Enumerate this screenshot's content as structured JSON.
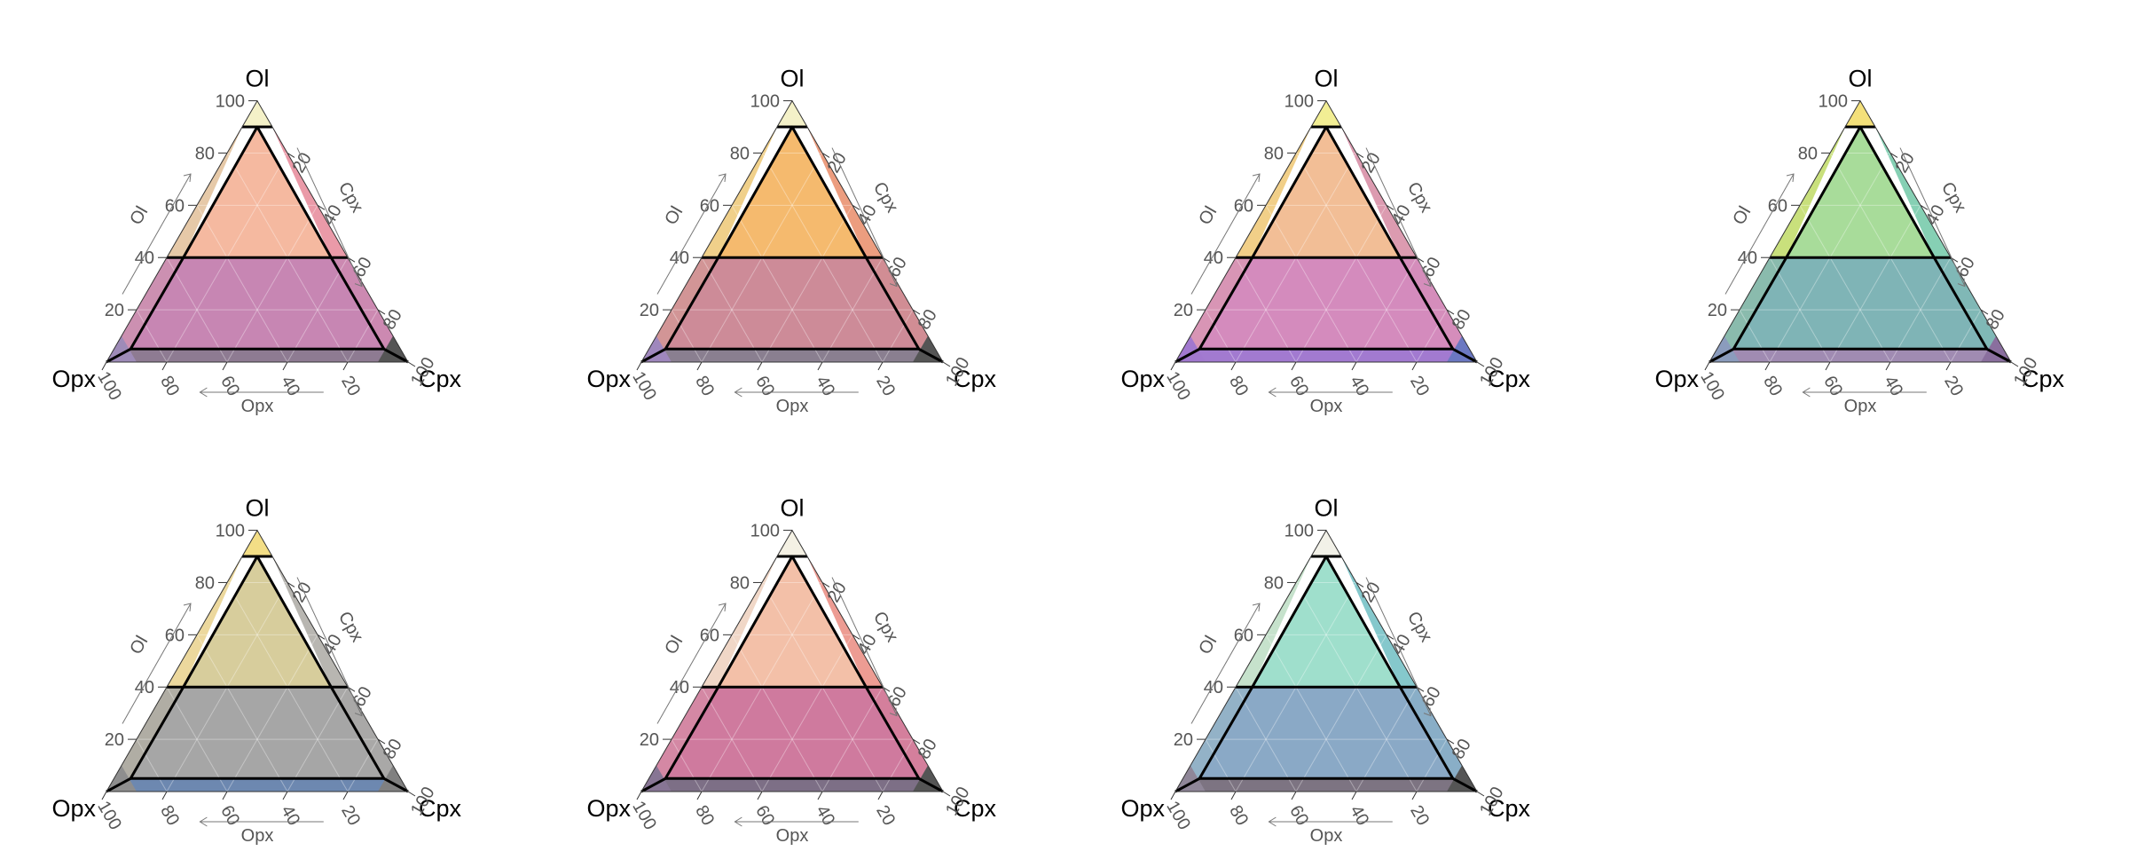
{
  "axes": {
    "top_vertex": "Ol",
    "left_vertex": "Opx",
    "right_vertex": "Cpx",
    "left_axis_title": "Ol",
    "right_axis_title": "Cpx",
    "bottom_axis_title": "Opx",
    "left_ticks": [
      "20",
      "40",
      "60",
      "80",
      "100"
    ],
    "right_ticks": [
      "20",
      "40",
      "60",
      "80",
      "100"
    ],
    "bottom_ticks": [
      "100",
      "80",
      "60",
      "40",
      "20"
    ]
  },
  "diagram_data": {
    "type": "ternary-classification",
    "fields_by_Ol_percent": [
      [
        90,
        100
      ],
      [
        40,
        90
      ],
      [
        5,
        40
      ],
      [
        0,
        5
      ]
    ],
    "corner_cutoff_percent": 90,
    "panels": [
      {
        "colors": {
          "tip": "#f4f1c8",
          "upper": "#f5b9a0",
          "middle": "#c786b3",
          "base": "#8e7b92",
          "left_band": "#e6c9a8",
          "right_band": "#ea9aa8",
          "left_corner": "#9e8bb8",
          "right_corner": "#555555"
        }
      },
      {
        "colors": {
          "tip": "#f4f1c8",
          "upper": "#f5ba6e",
          "middle": "#cd8b98",
          "base": "#8a7f90",
          "left_band": "#f0d08a",
          "right_band": "#ec9d7f",
          "left_corner": "#9f87bd",
          "right_corner": "#555555"
        }
      },
      {
        "colors": {
          "tip": "#f2ee94",
          "upper": "#f2be96",
          "middle": "#d48bbd",
          "base": "#a27ad0",
          "left_band": "#f1cf88",
          "right_band": "#dc9bb0",
          "left_corner": "#a178cf",
          "right_corner": "#6b78c2"
        }
      },
      {
        "colors": {
          "tip": "#f4e07a",
          "upper": "#a8dc9a",
          "middle": "#7fb4b6",
          "base": "#a08bb2",
          "left_band": "#c9e07c",
          "right_band": "#86d0b4",
          "left_corner": "#8b9cbd",
          "right_corner": "#8a6f9e"
        }
      },
      {
        "colors": {
          "tip": "#f3de86",
          "upper": "#d7cd9c",
          "middle": "#a6a6a6",
          "base": "#6d88b0",
          "left_band": "#ecd89d",
          "right_band": "#b8b6b1",
          "left_corner": "#8e8e8e",
          "right_corner": "#808080"
        }
      },
      {
        "colors": {
          "tip": "#f4f1e4",
          "upper": "#f3c0a8",
          "middle": "#cf7a9e",
          "base": "#7d6f86",
          "left_band": "#f0d7c7",
          "right_band": "#ed9c93",
          "left_corner": "#877594",
          "right_corner": "#555555"
        }
      },
      {
        "colors": {
          "tip": "#f2f1e8",
          "upper": "#9fdfcc",
          "middle": "#8aa9c6",
          "base": "#7d7482",
          "left_band": "#c6e2cc",
          "right_band": "#85c8cc",
          "left_corner": "#8f8698",
          "right_corner": "#555555"
        }
      }
    ]
  }
}
